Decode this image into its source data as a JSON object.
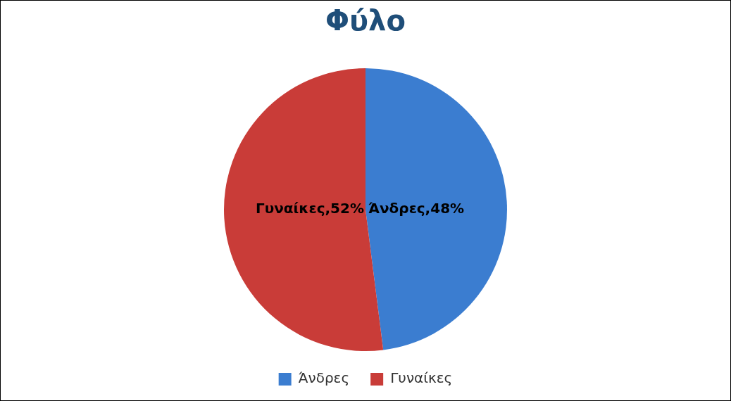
{
  "chart_data": {
    "type": "pie",
    "title": "Φύλο",
    "categories": [
      "Άνδρες",
      "Γυναίκες"
    ],
    "values": [
      48,
      52
    ],
    "colors": [
      "#3b7dd0",
      "#c93c38"
    ],
    "value_labels": [
      "Άνδρες,48%",
      "Γυναίκες,52%"
    ],
    "legend": "bottom"
  }
}
